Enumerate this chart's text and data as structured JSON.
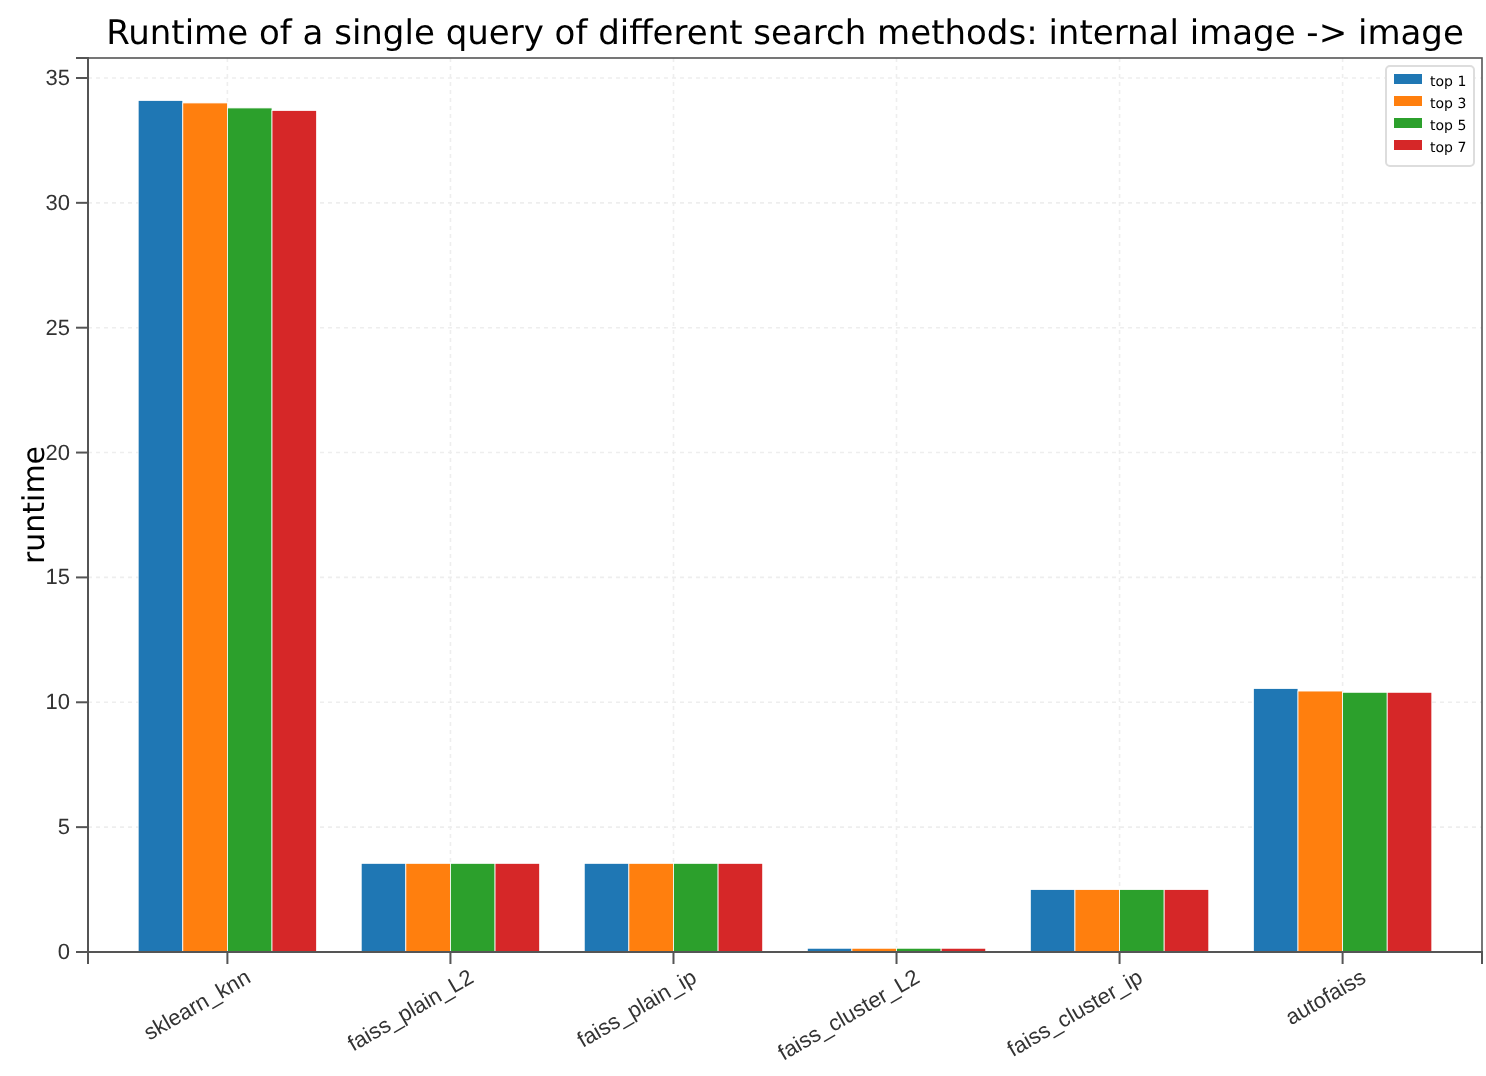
{
  "chart_data": {
    "type": "bar",
    "title": "Runtime of a single query of different search methods: internal image -> image",
    "ylabel": "runtime",
    "categories": [
      "sklearn_knn",
      "faiss_plain_L2",
      "faiss_plain_ip",
      "faiss_cluster_L2",
      "faiss_cluster_ip",
      "autofaiss"
    ],
    "series": [
      {
        "name": "top 1",
        "color": "#1f77b4",
        "values": [
          34.1,
          3.55,
          3.55,
          0.15,
          2.5,
          10.55
        ]
      },
      {
        "name": "top 3",
        "color": "#ff7f0e",
        "values": [
          34.0,
          3.55,
          3.55,
          0.15,
          2.5,
          10.45
        ]
      },
      {
        "name": "top 5",
        "color": "#2ca02c",
        "values": [
          33.8,
          3.55,
          3.55,
          0.15,
          2.5,
          10.4
        ]
      },
      {
        "name": "top 7",
        "color": "#d62728",
        "values": [
          33.7,
          3.55,
          3.55,
          0.15,
          2.5,
          10.4
        ]
      }
    ],
    "ylim": [
      0,
      35.8
    ],
    "yticks": [
      0,
      5,
      10,
      15,
      20,
      25,
      30,
      35
    ],
    "grid": true,
    "legend": "top right"
  }
}
